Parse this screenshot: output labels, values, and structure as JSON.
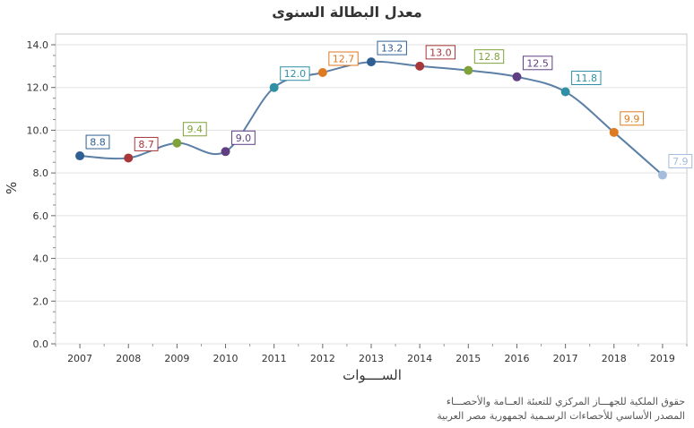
{
  "title": "معدل البطالة  السنوى",
  "credits": {
    "line1": "حقوق الملكية للجهـــاز المركزي للتعبئة العــامة والأحصـــاء",
    "line2": "المصدر الأساسي للأحصاءات الرسـمية لجمهورية مصر العربية"
  },
  "chart_data": {
    "type": "line",
    "title": "معدل البطالة  السنوى",
    "xlabel": "الســــوات",
    "ylabel": "%",
    "categories": [
      "2007",
      "2008",
      "2009",
      "2010",
      "2011",
      "2012",
      "2013",
      "2014",
      "2015",
      "2016",
      "2017",
      "2018",
      "2019"
    ],
    "values": [
      8.8,
      8.7,
      9.4,
      9.0,
      12.0,
      12.7,
      13.2,
      13.0,
      12.8,
      12.5,
      11.8,
      9.9,
      7.9
    ],
    "value_labels": [
      "8.8",
      "8.7",
      "9.4",
      "9.0",
      "12.0",
      "12.7",
      "13.2",
      "13.0",
      "12.8",
      "12.5",
      "11.8",
      "9.9",
      "7.9"
    ],
    "point_colors": [
      "#2f5f93",
      "#a8373a",
      "#7fa23a",
      "#5f3f82",
      "#2f8fa5",
      "#de7a1f",
      "#2f5f93",
      "#a8373a",
      "#7fa23a",
      "#5f3f82",
      "#2f8fa5",
      "#de7a1f",
      "#a5bcdc"
    ],
    "line_color": "#5b7fa6",
    "ylim": [
      0,
      14
    ],
    "yticks": [
      0,
      2,
      4,
      6,
      8,
      10,
      12,
      14
    ],
    "ytick_labels": [
      "0.0",
      "2.0",
      "4.0",
      "6.0",
      "8.0",
      "10.0",
      "12.0",
      "14.0"
    ],
    "grid": true,
    "legend": "none"
  }
}
